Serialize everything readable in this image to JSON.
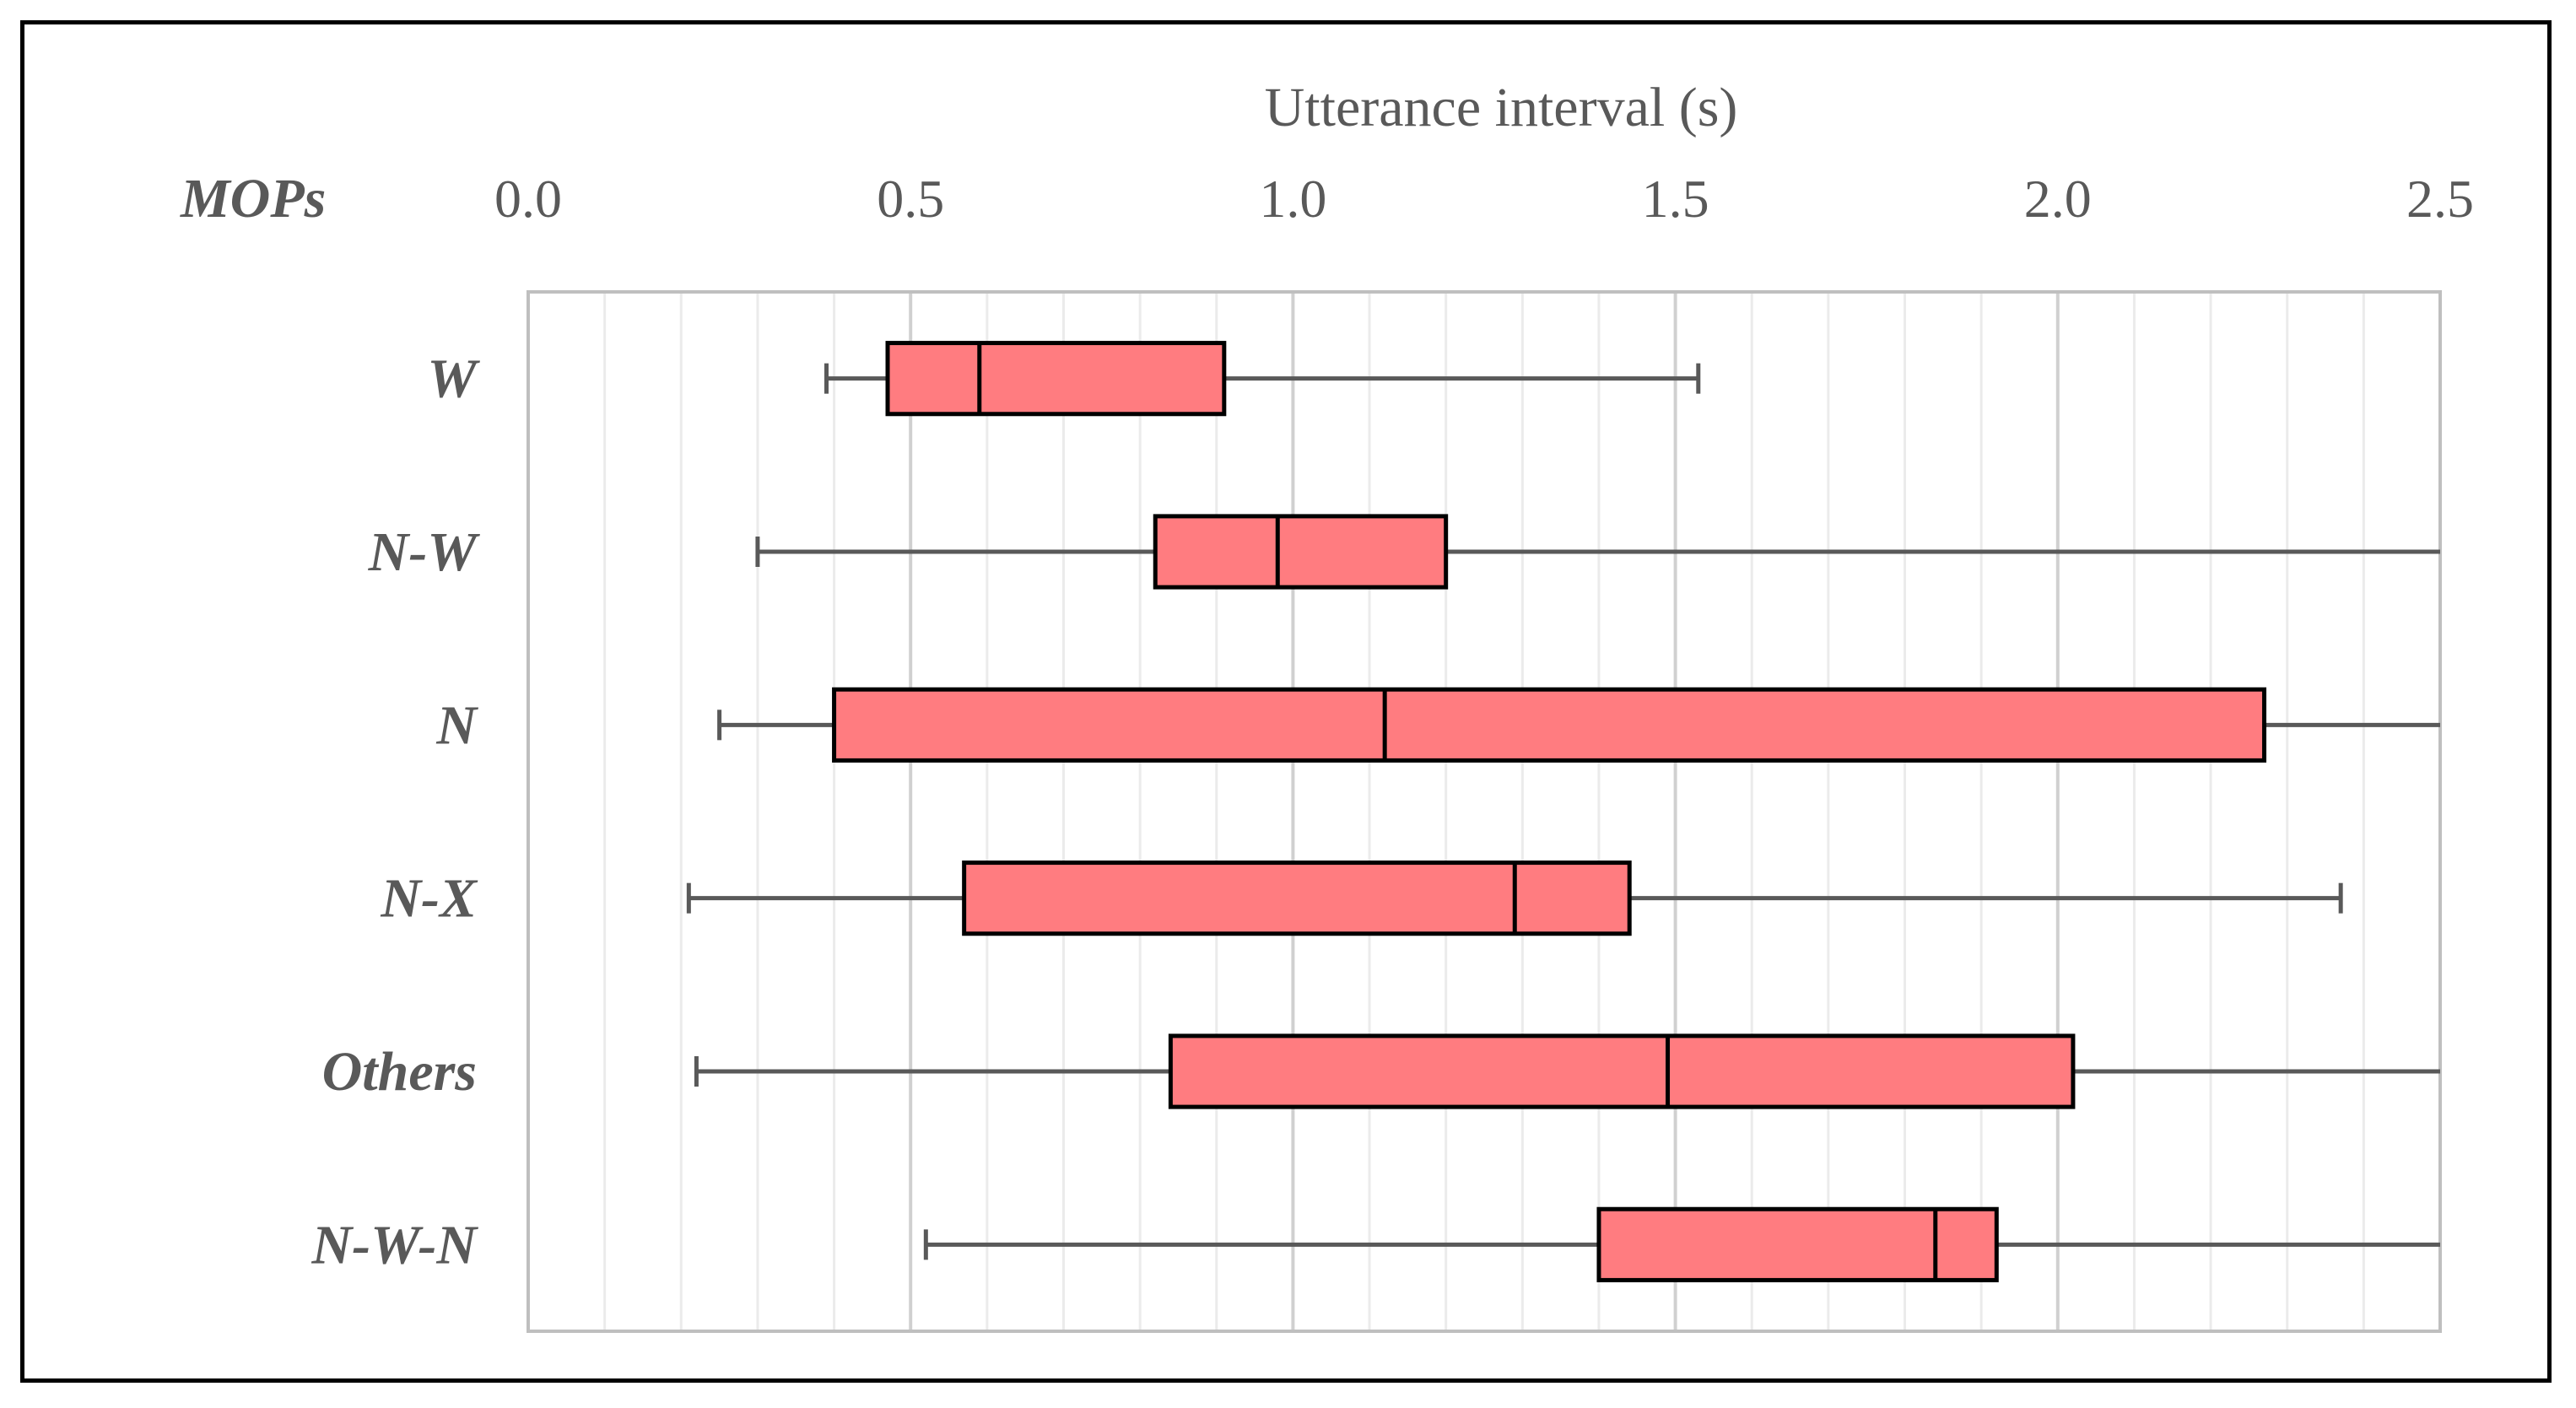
{
  "chart_data": {
    "type": "boxplot",
    "title": "",
    "xlabel": "Utterance interval (s)",
    "ylabel": "MOPs",
    "xlim": [
      0.0,
      2.5
    ],
    "xticks": [
      "0.0",
      "0.5",
      "1.0",
      "1.5",
      "2.0",
      "2.5"
    ],
    "minor_grid_step": 0.1,
    "grid": true,
    "orientation": "horizontal",
    "colors": {
      "box_fill": "#FF7C80",
      "box_edge": "#000000",
      "whisker": "#595959",
      "grid": "#D9D9D9",
      "plot_border": "#BFBFBF"
    },
    "categories": [
      "W",
      "N-W",
      "N",
      "N-X",
      "Others",
      "N-W-N"
    ],
    "boxes": [
      {
        "label": "W",
        "whisker_low": 0.39,
        "q1": 0.47,
        "median": 0.59,
        "q3": 0.91,
        "whisker_high": 1.53
      },
      {
        "label": "N-W",
        "whisker_low": 0.3,
        "q1": 0.82,
        "median": 0.98,
        "q3": 1.2,
        "whisker_high": 2.5
      },
      {
        "label": "N",
        "whisker_low": 0.25,
        "q1": 0.4,
        "median": 1.12,
        "q3": 2.27,
        "whisker_high": 2.5
      },
      {
        "label": "N-X",
        "whisker_low": 0.21,
        "q1": 0.57,
        "median": 1.29,
        "q3": 1.44,
        "whisker_high": 2.37
      },
      {
        "label": "Others",
        "whisker_low": 0.22,
        "q1": 0.84,
        "median": 1.49,
        "q3": 2.02,
        "whisker_high": 2.5
      },
      {
        "label": "N-W-N",
        "whisker_low": 0.52,
        "q1": 1.4,
        "median": 1.84,
        "q3": 1.92,
        "whisker_high": 2.5
      }
    ]
  }
}
